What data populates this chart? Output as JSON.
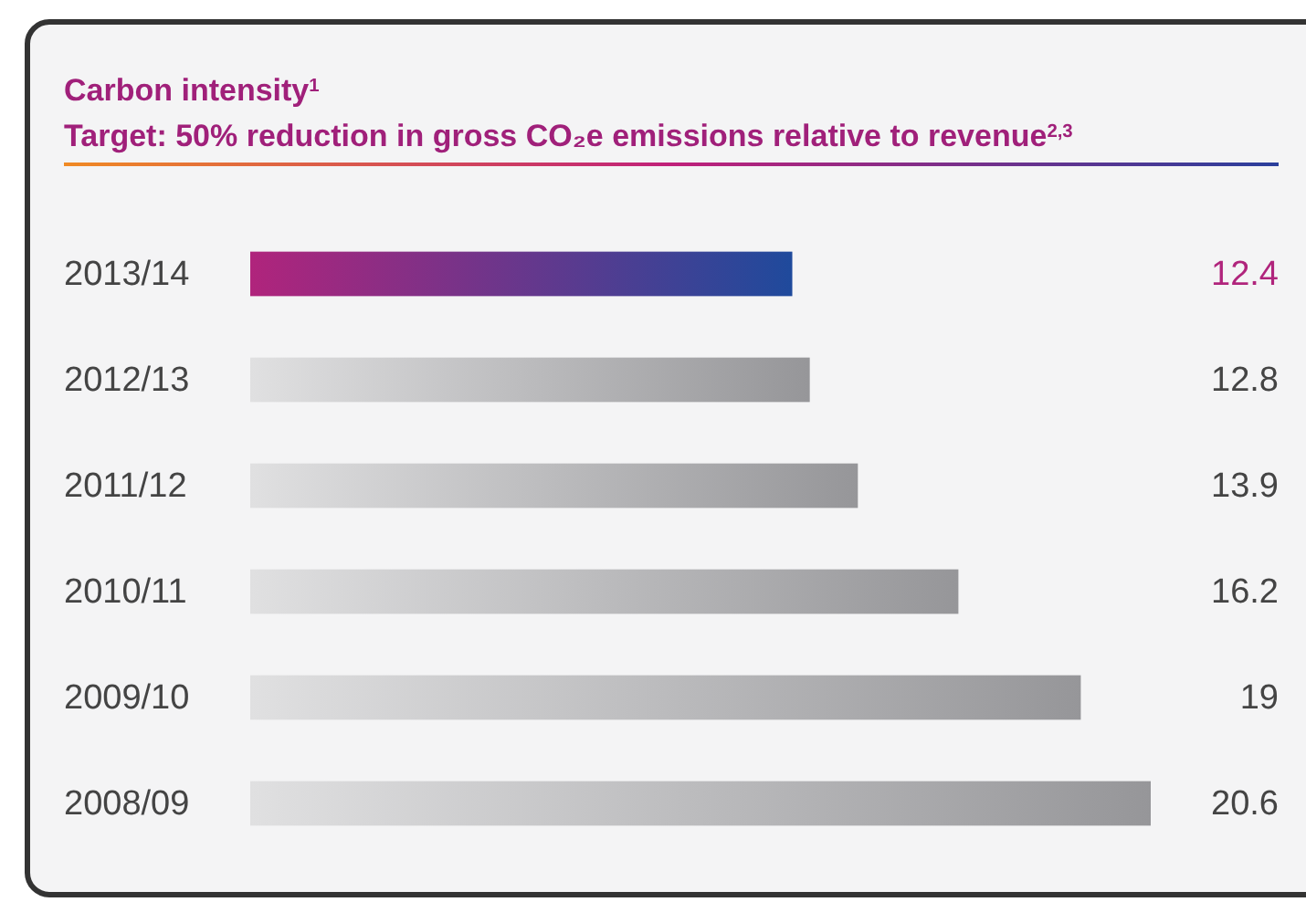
{
  "chart_data": {
    "type": "bar",
    "orientation": "horizontal",
    "title": "Carbon intensity$^{1}$",
    "subtitle": "Target: 50% reduction in gross CO₂e emissions relative to revenue$^{2,3}$",
    "categories": [
      "2013/14",
      "2012/13",
      "2011/12",
      "2010/11",
      "2009/10",
      "2008/09"
    ],
    "values": [
      12.4,
      12.8,
      13.9,
      16.2,
      19,
      20.6
    ],
    "colors": [
      "#6a3590",
      "#b4b4b6",
      "#b4b4b6",
      "#b4b4b6",
      "#b4b4b6",
      "#b4b4b6"
    ],
    "data_labels": true
  }
}
